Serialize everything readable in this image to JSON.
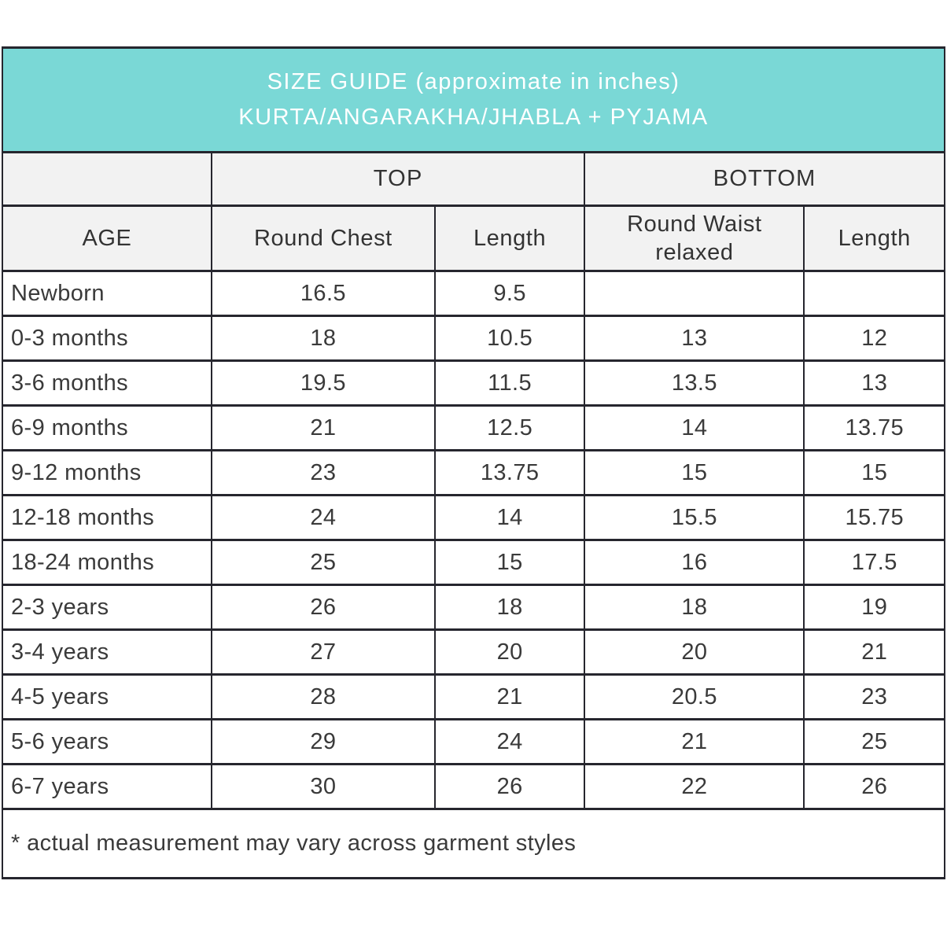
{
  "header": {
    "title_line1": "SIZE GUIDE (approximate in inches)",
    "title_line2": "KURTA/ANGARAKHA/JHABLA + PYJAMA"
  },
  "table": {
    "group_headers": {
      "top": "TOP",
      "bottom": "BOTTOM"
    },
    "column_headers": [
      "AGE",
      "Round Chest",
      "Length",
      "Round Waist relaxed",
      "Length"
    ],
    "rows": [
      [
        "Newborn",
        "16.5",
        "9.5",
        "",
        ""
      ],
      [
        "0-3 months",
        "18",
        "10.5",
        "13",
        "12"
      ],
      [
        "3-6 months",
        "19.5",
        "11.5",
        "13.5",
        "13"
      ],
      [
        "6-9 months",
        "21",
        "12.5",
        "14",
        "13.75"
      ],
      [
        "9-12 months",
        "23",
        "13.75",
        "15",
        "15"
      ],
      [
        "12-18 months",
        "24",
        "14",
        "15.5",
        "15.75"
      ],
      [
        "18-24 months",
        "25",
        "15",
        "16",
        "17.5"
      ],
      [
        "2-3 years",
        "26",
        "18",
        "18",
        "19"
      ],
      [
        "3-4 years",
        "27",
        "20",
        "20",
        "21"
      ],
      [
        "4-5 years",
        "28",
        "21",
        "20.5",
        "23"
      ],
      [
        "5-6 years",
        "29",
        "24",
        "21",
        "25"
      ],
      [
        "6-7 years",
        "30",
        "26",
        "22",
        "26"
      ]
    ],
    "footnote": "* actual measurement may vary across garment styles"
  },
  "colors": {
    "banner_bg": "#7ad8d6",
    "banner_text": "#ffffff",
    "header_bg": "#f2f2f2",
    "border": "#26262e",
    "text": "#3a3a3a"
  }
}
